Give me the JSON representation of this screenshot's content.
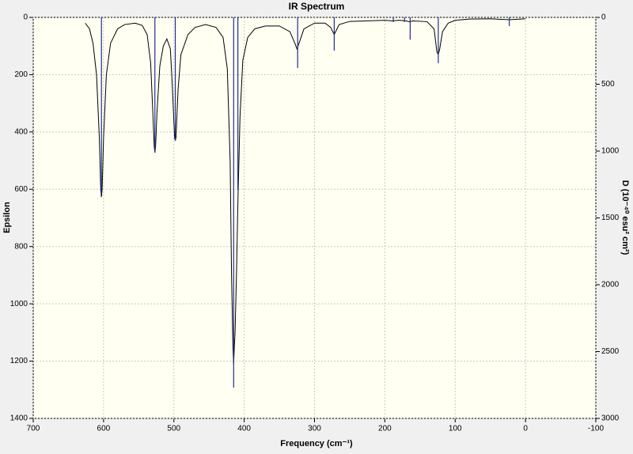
{
  "chart_data": {
    "type": "line",
    "title": "IR Spectrum",
    "xlabel": "Frequency (cm⁻¹)",
    "ylabel": "Epsilon",
    "y2label": "D (10⁻⁴⁰ esu² cm²)",
    "xlim": [
      700,
      -100
    ],
    "xticks": [
      700,
      600,
      500,
      400,
      300,
      200,
      100,
      0,
      -100
    ],
    "ylim": [
      0,
      1400
    ],
    "yticks": [
      0,
      200,
      400,
      600,
      800,
      1000,
      1200,
      1400
    ],
    "y2lim": [
      0,
      3000
    ],
    "y2ticks": [
      0,
      500,
      1000,
      1500,
      2000,
      2500,
      3000
    ],
    "y_inverted": true,
    "grid": true,
    "series": [
      {
        "kind": "line",
        "color": "#000000",
        "x": [
          626,
          620,
          615,
          610,
          606,
          604,
          603,
          602,
          600,
          596,
          590,
          580,
          570,
          555,
          545,
          538,
          533,
          530,
          528,
          527,
          526,
          524,
          520,
          515,
          510,
          505,
          502,
          499,
          498,
          497,
          494,
          490,
          480,
          470,
          455,
          440,
          430,
          424,
          420,
          418,
          416,
          415,
          414,
          413,
          411,
          409,
          406,
          402,
          395,
          385,
          370,
          350,
          335,
          328,
          325,
          322,
          315,
          300,
          285,
          277,
          273,
          272,
          270,
          265,
          250,
          200,
          190,
          180,
          170,
          165,
          160,
          140,
          130,
          126,
          124,
          122,
          118,
          110,
          100,
          80,
          50,
          25,
          22,
          0
        ],
        "values": [
          20,
          40,
          90,
          200,
          420,
          600,
          627,
          600,
          420,
          200,
          90,
          40,
          25,
          20,
          28,
          60,
          160,
          330,
          450,
          472,
          450,
          330,
          170,
          100,
          75,
          110,
          250,
          420,
          430,
          420,
          250,
          130,
          60,
          35,
          25,
          35,
          70,
          180,
          500,
          900,
          1150,
          1210,
          1150,
          1100,
          900,
          650,
          350,
          150,
          70,
          40,
          30,
          30,
          50,
          90,
          110,
          90,
          40,
          20,
          20,
          35,
          55,
          60,
          50,
          25,
          14,
          10,
          12,
          10,
          12,
          15,
          12,
          15,
          40,
          120,
          130,
          110,
          50,
          20,
          10,
          6,
          5,
          8,
          8,
          5
        ]
      },
      {
        "kind": "stick",
        "axis": "y2",
        "color": "#1f2f8f",
        "x": [
          603,
          527,
          498,
          415,
          409,
          324,
          272,
          188,
          172,
          164,
          124,
          23
        ],
        "values": [
          1320,
          1012,
          923,
          2769,
          1290,
          379,
          248,
          35,
          35,
          166,
          343,
          65
        ]
      }
    ]
  }
}
